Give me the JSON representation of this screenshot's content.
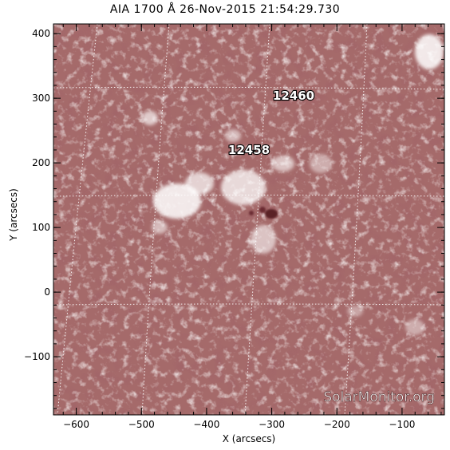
{
  "title": "AIA 1700 Å 26-Nov-2015 21:54:29.730",
  "axes": {
    "xlabel": "X (arcsecs)",
    "ylabel": "Y (arcsecs)",
    "xlim": [
      -635,
      -35
    ],
    "ylim": [
      -190,
      415
    ],
    "xticks": [
      -600,
      -500,
      -400,
      -300,
      -200,
      -100
    ],
    "yticks": [
      -100,
      0,
      100,
      200,
      300,
      400
    ],
    "grid": "dotted heliographic"
  },
  "active_regions": [
    {
      "label": "12460",
      "x": -290,
      "y": 300
    },
    {
      "label": "12458",
      "x": -330,
      "y": 212
    }
  ],
  "watermark": "SolarMonitor.org",
  "colors": {
    "image_base": "#a56a6a",
    "plage": "#ffffff",
    "sunspot": "#5a2026",
    "grid": "#ffffff"
  }
}
